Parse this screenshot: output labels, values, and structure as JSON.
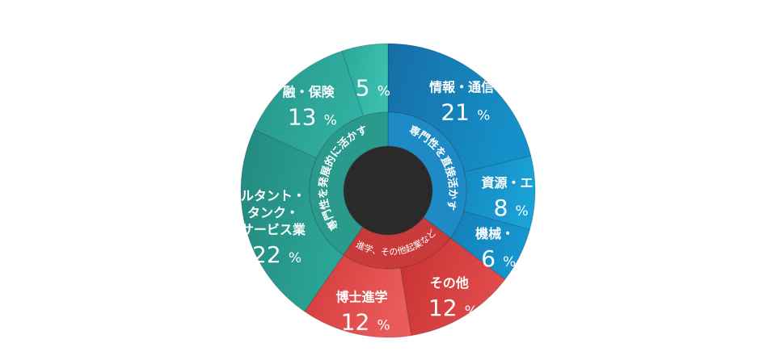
{
  "chart_data": {
    "type": "pie",
    "title": "",
    "inner_groups": [
      {
        "name": "専門性を直接活かす",
        "color": "#1f8bc6"
      },
      {
        "name": "専門性を発展的に活かす",
        "color": "#2a9a8c"
      },
      {
        "name": "進学、その他起業など",
        "color": "#c93a3a"
      }
    ],
    "slices": [
      {
        "lines": [
          "情報・通信"
        ],
        "value": 21,
        "group": 0,
        "colors": [
          "#166ea5",
          "#1590c9"
        ]
      },
      {
        "lines": [
          "資源・エ"
        ],
        "value": 8,
        "group": 0,
        "colors": [
          "#1687c0",
          "#1aa2d6"
        ]
      },
      {
        "lines": [
          "機械・"
        ],
        "value": 6,
        "group": 0,
        "colors": [
          "#137fb8",
          "#1696cf"
        ]
      },
      {
        "lines": [
          "その他"
        ],
        "value": 12,
        "group": 2,
        "colors": [
          "#c83232",
          "#e04b4b"
        ]
      },
      {
        "lines": [
          "博士進学"
        ],
        "value": 12,
        "group": 2,
        "colors": [
          "#d33a3a",
          "#ea5b5b"
        ]
      },
      {
        "lines": [
          "ルタント・",
          "タンク・",
          "サービス業"
        ],
        "value": 22,
        "group": 1,
        "colors": [
          "#23897f",
          "#2aa596"
        ]
      },
      {
        "lines": [
          "融・保険"
        ],
        "value": 13,
        "group": 1,
        "colors": [
          "#27958a",
          "#30b0a2"
        ]
      },
      {
        "lines": [],
        "value": 5,
        "group": 1,
        "colors": [
          "#2aa79a",
          "#3cbfae"
        ]
      }
    ],
    "unit": "%",
    "center_color": "#2a2a2a"
  }
}
